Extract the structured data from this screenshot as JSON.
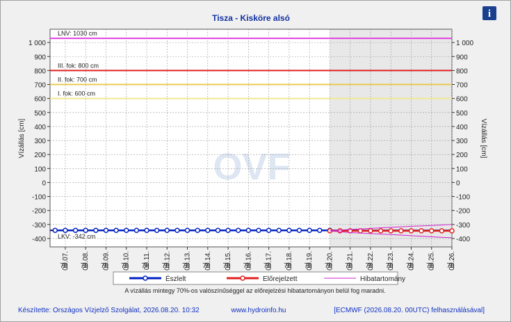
{
  "chart_data": {
    "type": "line",
    "title": "Tisza - Kisköre alsó",
    "y_label": "Vízállás [cm]",
    "y2_label": "Vízállás [cm]",
    "watermark": "OVF",
    "info_icon": "i",
    "xlim": [
      6.25,
      26
    ],
    "ylim": [
      -460,
      1095
    ],
    "grid": true,
    "xticks": [
      {
        "value": 7,
        "label": "08.07."
      },
      {
        "value": 8,
        "label": "08.08."
      },
      {
        "value": 9,
        "label": "08.09."
      },
      {
        "value": 10,
        "label": "08.10."
      },
      {
        "value": 11,
        "label": "08.11."
      },
      {
        "value": 12,
        "label": "08.12."
      },
      {
        "value": 13,
        "label": "08.13."
      },
      {
        "value": 14,
        "label": "08.14."
      },
      {
        "value": 15,
        "label": "08.15."
      },
      {
        "value": 16,
        "label": "08.16."
      },
      {
        "value": 17,
        "label": "08.17."
      },
      {
        "value": 18,
        "label": "08.18."
      },
      {
        "value": 19,
        "label": "08.19."
      },
      {
        "value": 20,
        "label": "08.20."
      },
      {
        "value": 21,
        "label": "08.21."
      },
      {
        "value": 22,
        "label": "08.22."
      },
      {
        "value": 23,
        "label": "08.23."
      },
      {
        "value": 24,
        "label": "08.24."
      },
      {
        "value": 25,
        "label": "08.25."
      },
      {
        "value": 26,
        "label": "08.26."
      }
    ],
    "xtick_hours": [
      "7h",
      "7h",
      "7h",
      "7h",
      "7h",
      "7h",
      "7h",
      "7h",
      "7h",
      "7h",
      "7h",
      "7h",
      "7h",
      "7h",
      "7h",
      "7h",
      "7h",
      "7h",
      "7h",
      "7h"
    ],
    "yticks": [
      -400,
      -300,
      -200,
      -100,
      0,
      100,
      200,
      300,
      400,
      500,
      600,
      700,
      800,
      900,
      {
        "value": 1000,
        "label": "1 000"
      }
    ],
    "reference_lines": [
      {
        "label": "LNV: 1030 cm",
        "value": 1030,
        "color": "#e040e0"
      },
      {
        "label": "III. fok: 800 cm",
        "value": 800,
        "color": "#e02020"
      },
      {
        "label": "II. fok: 700 cm",
        "value": 700,
        "color": "#e8c850"
      },
      {
        "label": "I. fok: 600 cm",
        "value": 600,
        "color": "#f0e890"
      },
      {
        "label": "LKV: -342 cm",
        "value": -342,
        "color": "#000080"
      }
    ],
    "series": [
      {
        "name": "Észlelt",
        "color": "#0020c0",
        "markers": true,
        "x": [
          6.5,
          7,
          7.5,
          8,
          8.5,
          9,
          9.5,
          10,
          10.5,
          11,
          11.5,
          12,
          12.5,
          13,
          13.5,
          14,
          14.5,
          15,
          15.5,
          16,
          16.5,
          17,
          17.5,
          18,
          18.5,
          19,
          19.5,
          20
        ],
        "values": [
          -342,
          -342,
          -342,
          -342,
          -342,
          -342,
          -342,
          -342,
          -342,
          -342,
          -342,
          -342,
          -342,
          -342,
          -342,
          -342,
          -342,
          -342,
          -342,
          -342,
          -342,
          -342,
          -342,
          -342,
          -342,
          -342,
          -342,
          -342
        ]
      },
      {
        "name": "Előrejelzett",
        "color": "#e02020",
        "markers": true,
        "x": [
          20,
          20.5,
          21,
          21.5,
          22,
          22.5,
          23,
          23.5,
          24,
          24.5,
          25,
          25.5,
          26
        ],
        "values": [
          -345,
          -345,
          -345,
          -345,
          -345,
          -345,
          -345,
          -345,
          -345,
          -345,
          -345,
          -345,
          -345
        ]
      },
      {
        "name": "Hibatartomány",
        "color": "#d020d0",
        "band": true,
        "x": [
          20,
          21,
          22,
          23,
          24,
          25,
          26
        ],
        "upper": [
          -345,
          -335,
          -328,
          -320,
          -313,
          -307,
          -300
        ],
        "lower": [
          -345,
          -358,
          -365,
          -372,
          -380,
          -388,
          -395
        ]
      }
    ],
    "note": "A vízállás mintegy 70%-os valószínűséggel az előrejelzési hibatartományon belül fog maradni.",
    "footer": {
      "left": "Készítette: Országos Vízjelző Szolgálat, 2026.08.20. 10:32",
      "center": "www.hydroinfo.hu",
      "right": "[ECMWF (2026.08.20. 00UTC) felhasználásával]"
    }
  }
}
